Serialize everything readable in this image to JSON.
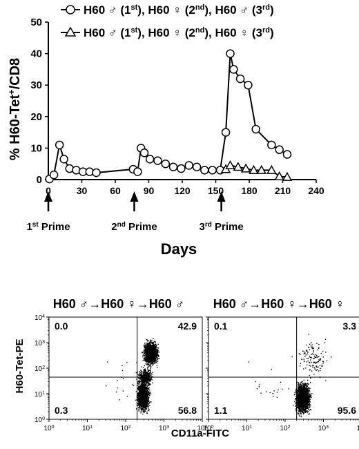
{
  "chart_data": [
    {
      "type": "line",
      "xlabel": "Days",
      "ylabel": "% H60-Tet⁺/CD8",
      "xlim": [
        0,
        240
      ],
      "ylim": [
        0,
        50
      ],
      "x_ticks": [
        "0",
        "30",
        "60",
        "90",
        "120",
        "150",
        "180",
        "210",
        "240"
      ],
      "y_ticks": [
        "0",
        "10",
        "20",
        "30",
        "40",
        "50"
      ],
      "grid": false,
      "legend_position": "top-right",
      "series": [
        {
          "name": "H60 ♂ (1st), H60 ♀ (2nd), H60 ♂ (3rd)",
          "marker": "circle",
          "x": [
            1,
            5,
            10,
            14,
            19,
            25,
            31,
            37,
            43,
            76,
            80,
            83,
            86,
            91,
            98,
            105,
            112,
            119,
            126,
            133,
            140,
            147,
            154,
            159,
            163,
            166,
            172,
            179,
            186,
            200,
            207,
            214
          ],
          "y": [
            0.2,
            1.5,
            11,
            6.5,
            3.5,
            3,
            2.5,
            2.5,
            2.2,
            3.3,
            2.5,
            10,
            8.5,
            6.5,
            6,
            5,
            4,
            3.5,
            4.5,
            4,
            3,
            3,
            3,
            15,
            40,
            35,
            32,
            30,
            16,
            11,
            9.5,
            8
          ]
        },
        {
          "name": "H60 ♂ (1st), H60 ♀ (2nd), H60 ♀ (3rd)",
          "marker": "triangle",
          "x": [
            159,
            163,
            170,
            177,
            184,
            191,
            200,
            207,
            214
          ],
          "y": [
            3.3,
            4.5,
            4,
            3.5,
            3,
            3,
            3,
            1,
            0.8
          ]
        }
      ],
      "annotations": [
        {
          "x": 0,
          "label": "1st Prime"
        },
        {
          "x": 77,
          "label": "2nd Prime"
        },
        {
          "x": 155,
          "label": "3rd Prime"
        }
      ]
    },
    {
      "type": "scatter",
      "title": "H60 ♂→H60 ♀→H60 ♂",
      "xlabel": "CD11a-FITC",
      "ylabel": "H60-Tet-PE",
      "x_scale": "log",
      "y_scale": "log",
      "xlim": [
        1,
        10000
      ],
      "ylim": [
        1,
        10000
      ],
      "quadrants": {
        "upper_left": "0.0",
        "upper_right": "42.9",
        "lower_left": "0.3",
        "lower_right": "56.8"
      }
    },
    {
      "type": "scatter",
      "title": "H60 ♂→H60 ♀→H60 ♀",
      "xlabel": "CD11a-FITC",
      "ylabel": "H60-Tet-PE",
      "x_scale": "log",
      "y_scale": "log",
      "xlim": [
        1,
        10000
      ],
      "ylim": [
        1,
        10000
      ],
      "quadrants": {
        "upper_left": "0.1",
        "upper_right": "3.3",
        "lower_left": "1.1",
        "lower_right": "95.6"
      }
    }
  ],
  "legend": [
    {
      "base": "H60 ♂ (1",
      "s1": "st",
      "mid1": "), H60 ♀ (2",
      "s2": "nd",
      "mid2": "), H60 ♂ (3",
      "s3": "rd",
      "end": ")"
    },
    {
      "base": "H60 ♂ (1",
      "s1": "st",
      "mid1": "), H60 ♀ (2",
      "s2": "nd",
      "mid2": "), H60 ♀ (3",
      "s3": "rd",
      "end": ")"
    }
  ],
  "prime_labels": [
    {
      "num": "1",
      "sup": "st",
      "word": " Prime"
    },
    {
      "num": "2",
      "sup": "nd",
      "word": " Prime"
    },
    {
      "num": "3",
      "sup": "rd",
      "word": " Prime"
    }
  ],
  "ylabel_parts": {
    "a": "% H60-Tet",
    "sup": "+",
    "b": "/CD8"
  },
  "flow_ticks": {
    "base": "10",
    "exps": [
      "0",
      "1",
      "2",
      "3",
      "4"
    ]
  },
  "colors": {
    "ink": "#000000",
    "marker_fill": "#ffffff"
  }
}
